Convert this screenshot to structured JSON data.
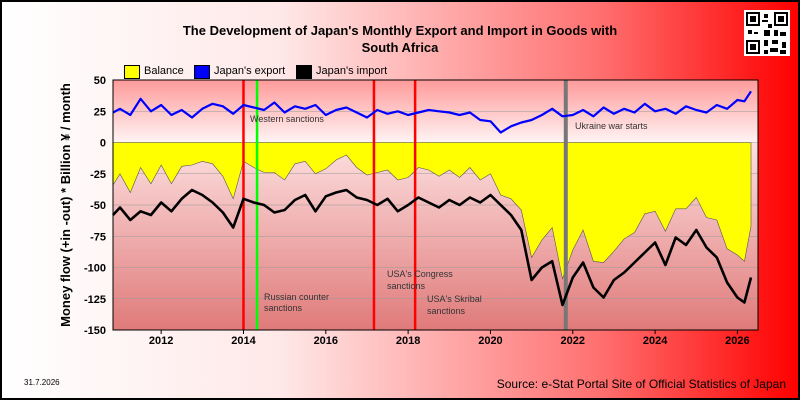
{
  "chart_data": {
    "type": "line",
    "title_line1": "The Development of Japan's Monthly Export and Import in Goods with",
    "title_line2": "South Africa",
    "ylabel": "Money flow (+in -out) * Billion ¥ / month",
    "ylim": [
      -150,
      50
    ],
    "xlim": [
      2010.83,
      2026.5
    ],
    "y_ticks": [
      "50",
      "25",
      "0",
      "-25",
      "-50",
      "-75",
      "-100",
      "-125",
      "-150"
    ],
    "x_ticks": [
      "2012",
      "2014",
      "2016",
      "2018",
      "2020",
      "2022",
      "2024",
      "2026"
    ],
    "grid": "horizontal",
    "legend_position": "top-left",
    "legend": [
      {
        "label": "Balance",
        "color": "#ffff00"
      },
      {
        "label": "Japan's export",
        "color": "#0000ff"
      },
      {
        "label": "Japan's import",
        "color": "#000000"
      }
    ],
    "series": [
      {
        "name": "Japan's export",
        "color": "#0000ff",
        "x": [
          2010.83,
          2011.0,
          2011.25,
          2011.5,
          2011.75,
          2012.0,
          2012.25,
          2012.5,
          2012.75,
          2013.0,
          2013.25,
          2013.5,
          2013.75,
          2014.0,
          2014.25,
          2014.5,
          2014.75,
          2015.0,
          2015.25,
          2015.5,
          2015.75,
          2016.0,
          2016.25,
          2016.5,
          2016.75,
          2017.0,
          2017.25,
          2017.5,
          2017.75,
          2018.0,
          2018.25,
          2018.5,
          2018.75,
          2019.0,
          2019.25,
          2019.5,
          2019.75,
          2020.0,
          2020.25,
          2020.5,
          2020.75,
          2021.0,
          2021.25,
          2021.5,
          2021.75,
          2022.0,
          2022.25,
          2022.5,
          2022.75,
          2023.0,
          2023.25,
          2023.5,
          2023.75,
          2024.0,
          2024.25,
          2024.5,
          2024.75,
          2025.0,
          2025.25,
          2025.5,
          2025.75,
          2026.0,
          2026.17,
          2026.33
        ],
        "values": [
          24,
          27,
          22,
          35,
          25,
          30,
          22,
          26,
          20,
          27,
          31,
          29,
          23,
          30,
          28,
          26,
          32,
          24,
          29,
          27,
          30,
          22,
          26,
          28,
          24,
          20,
          26,
          23,
          25,
          22,
          24,
          26,
          25,
          24,
          22,
          24,
          18,
          17,
          8,
          13,
          16,
          18,
          22,
          27,
          21,
          22,
          26,
          21,
          28,
          23,
          27,
          24,
          31,
          25,
          27,
          23,
          29,
          26,
          24,
          30,
          27,
          34,
          33,
          41
        ]
      },
      {
        "name": "Japan's import",
        "color": "#000000",
        "x": [
          2010.83,
          2011.0,
          2011.25,
          2011.5,
          2011.75,
          2012.0,
          2012.25,
          2012.5,
          2012.75,
          2013.0,
          2013.25,
          2013.5,
          2013.75,
          2014.0,
          2014.25,
          2014.5,
          2014.75,
          2015.0,
          2015.25,
          2015.5,
          2015.75,
          2016.0,
          2016.25,
          2016.5,
          2016.75,
          2017.0,
          2017.25,
          2017.5,
          2017.75,
          2018.0,
          2018.25,
          2018.5,
          2018.75,
          2019.0,
          2019.25,
          2019.5,
          2019.75,
          2020.0,
          2020.25,
          2020.5,
          2020.75,
          2021.0,
          2021.25,
          2021.5,
          2021.75,
          2022.0,
          2022.25,
          2022.5,
          2022.75,
          2023.0,
          2023.25,
          2023.5,
          2023.75,
          2024.0,
          2024.25,
          2024.5,
          2024.75,
          2025.0,
          2025.25,
          2025.5,
          2025.75,
          2026.0,
          2026.17,
          2026.33
        ],
        "values": [
          -58,
          -52,
          -62,
          -55,
          -58,
          -48,
          -55,
          -45,
          -38,
          -42,
          -48,
          -56,
          -68,
          -45,
          -48,
          -50,
          -56,
          -54,
          -46,
          -42,
          -55,
          -43,
          -40,
          -38,
          -44,
          -46,
          -50,
          -45,
          -55,
          -50,
          -44,
          -48,
          -52,
          -46,
          -50,
          -44,
          -48,
          -42,
          -50,
          -58,
          -70,
          -110,
          -100,
          -95,
          -130,
          -108,
          -96,
          -116,
          -124,
          -110,
          -104,
          -96,
          -88,
          -80,
          -98,
          -76,
          -82,
          -70,
          -84,
          -92,
          -112,
          -124,
          -128,
          -108
        ]
      },
      {
        "name": "Balance",
        "color": "#ffff00",
        "x": [
          2010.83,
          2011.0,
          2011.25,
          2011.5,
          2011.75,
          2012.0,
          2012.25,
          2012.5,
          2012.75,
          2013.0,
          2013.25,
          2013.5,
          2013.75,
          2014.0,
          2014.25,
          2014.5,
          2014.75,
          2015.0,
          2015.25,
          2015.5,
          2015.75,
          2016.0,
          2016.25,
          2016.5,
          2016.75,
          2017.0,
          2017.25,
          2017.5,
          2017.75,
          2018.0,
          2018.25,
          2018.5,
          2018.75,
          2019.0,
          2019.25,
          2019.5,
          2019.75,
          2020.0,
          2020.25,
          2020.5,
          2020.75,
          2021.0,
          2021.25,
          2021.5,
          2021.75,
          2022.0,
          2022.25,
          2022.5,
          2022.75,
          2023.0,
          2023.25,
          2023.5,
          2023.75,
          2024.0,
          2024.25,
          2024.5,
          2024.75,
          2025.0,
          2025.25,
          2025.5,
          2025.75,
          2026.0,
          2026.17,
          2026.33
        ],
        "values": [
          -34,
          -25,
          -40,
          -20,
          -33,
          -18,
          -33,
          -19,
          -18,
          -15,
          -17,
          -27,
          -45,
          -15,
          -20,
          -24,
          -24,
          -30,
          -17,
          -15,
          -25,
          -21,
          -14,
          -10,
          -20,
          -26,
          -24,
          -22,
          -30,
          -28,
          -20,
          -22,
          -27,
          -22,
          -28,
          -20,
          -30,
          -25,
          -42,
          -45,
          -54,
          -92,
          -78,
          -68,
          -109,
          -86,
          -70,
          -95,
          -96,
          -87,
          -77,
          -72,
          -57,
          -55,
          -71,
          -53,
          -53,
          -44,
          -60,
          -62,
          -85,
          -90,
          -95,
          -67
        ]
      }
    ],
    "annotations": [
      {
        "x": 2014.0,
        "color": "#ff0000",
        "label": "Western sanctions"
      },
      {
        "x": 2014.33,
        "color": "#00ff00",
        "label_line1": "Russian counter",
        "label_line2": "sanctions"
      },
      {
        "x": 2017.17,
        "color": "#ff0000",
        "label_line1": "USA's Congress",
        "label_line2": "sanctions"
      },
      {
        "x": 2018.17,
        "color": "#ff0000",
        "label_line1": "USA's Skribal",
        "label_line2": "sanctions"
      },
      {
        "x": 2021.83,
        "color": "#777777",
        "label": "Ukraine war starts"
      }
    ]
  },
  "footer": {
    "date": "31.7.2026",
    "source": "Source: e-Stat Portal Site of Official Statistics of Japan"
  }
}
